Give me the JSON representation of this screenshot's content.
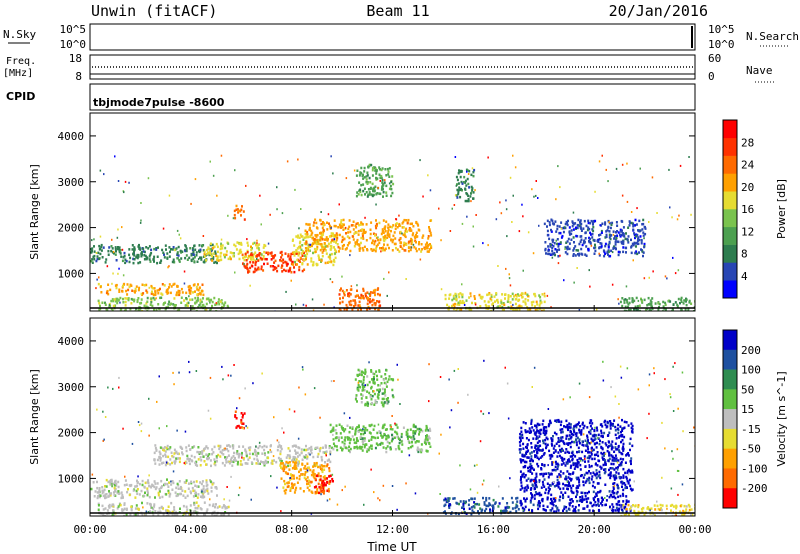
{
  "header": {
    "station": "Unwin (fitACF)",
    "beam": "Beam 11",
    "date": "20/Jan/2016"
  },
  "strip": {
    "nsky_label": "N.Sky",
    "nsky_top": "10^5",
    "nsky_bottom": "10^0",
    "nsky_right_top": "10^5",
    "nsky_right_bottom": "10^0",
    "nsearch_label": "N.Search",
    "freq_label_1": "Freq.",
    "freq_label_2": "[MHz]",
    "freq_top": "18",
    "freq_bottom": "8",
    "nave_top": "60",
    "nave_bottom": "0",
    "nave_label": "Nave",
    "cpid_label": "CPID",
    "cpid_value": "tbjmode7pulse  -8600"
  },
  "chart_data": [
    {
      "type": "heatmap",
      "name": "power",
      "ylabel": "Slant Range [km]",
      "xlabel": "Time UT",
      "ylim": [
        180,
        4500
      ],
      "xlim": [
        "00:00",
        "24:00"
      ],
      "yticks": [
        "1000",
        "2000",
        "3000",
        "4000"
      ],
      "xticks": [
        "00:00",
        "04:00",
        "08:00",
        "12:00",
        "16:00",
        "20:00",
        "00:00"
      ],
      "colorbar": {
        "label": "Power [dB]",
        "ticks": [
          "4",
          "8",
          "12",
          "16",
          "20",
          "24",
          "28"
        ],
        "colors": [
          "#0000ff",
          "#2846b4",
          "#2e7d4f",
          "#4ca050",
          "#7ac34e",
          "#e6dc32",
          "#ffa000",
          "#ff6a00",
          "#ff3200",
          "#ff0000"
        ]
      },
      "regions": [
        {
          "t0": 0.3,
          "t1": 5.5,
          "r0": 200,
          "r1": 500,
          "value": 14
        },
        {
          "t0": 0.3,
          "t1": 4.5,
          "r0": 550,
          "r1": 800,
          "value": 22
        },
        {
          "t0": 0.0,
          "t1": 5.0,
          "r0": 1250,
          "r1": 1650,
          "value": 9
        },
        {
          "t0": 4.5,
          "t1": 7.0,
          "r0": 1300,
          "r1": 1700,
          "value": 17
        },
        {
          "t0": 6.0,
          "t1": 8.5,
          "r0": 1050,
          "r1": 1500,
          "value": 27
        },
        {
          "t0": 8.0,
          "t1": 9.8,
          "r0": 1200,
          "r1": 1900,
          "value": 17
        },
        {
          "t0": 8.5,
          "t1": 13.5,
          "r0": 1500,
          "r1": 2200,
          "value": 21
        },
        {
          "t0": 9.8,
          "t1": 11.5,
          "r0": 200,
          "r1": 700,
          "value": 25
        },
        {
          "t0": 10.5,
          "t1": 12.0,
          "r0": 2700,
          "r1": 3400,
          "value": 11
        },
        {
          "t0": 5.7,
          "t1": 6.1,
          "r0": 2200,
          "r1": 2500,
          "value": 24
        },
        {
          "t0": 14.5,
          "t1": 15.2,
          "r0": 2600,
          "r1": 3300,
          "value": 7
        },
        {
          "t0": 14.0,
          "t1": 18.0,
          "r0": 200,
          "r1": 600,
          "value": 16
        },
        {
          "t0": 18.0,
          "t1": 22.0,
          "r0": 1400,
          "r1": 2200,
          "value": 6
        },
        {
          "t0": 21.0,
          "t1": 24.0,
          "r0": 200,
          "r1": 500,
          "value": 12
        }
      ]
    },
    {
      "type": "heatmap",
      "name": "velocity",
      "ylabel": "Slant Range [km]",
      "xlabel": "Time UT",
      "ylim": [
        180,
        4500
      ],
      "xlim": [
        "00:00",
        "24:00"
      ],
      "yticks": [
        "1000",
        "2000",
        "3000",
        "4000"
      ],
      "xticks": [
        "00:00",
        "04:00",
        "08:00",
        "12:00",
        "16:00",
        "20:00",
        "00:00"
      ],
      "colorbar": {
        "label": "Velocity [m s^-1]",
        "ticks": [
          "200",
          "100",
          "50",
          "15",
          "-15",
          "-50",
          "-100",
          "-200"
        ],
        "colors": [
          "#0000c8",
          "#1e50a0",
          "#2e8c50",
          "#60c040",
          "#bebebe",
          "#e6dc32",
          "#ffa000",
          "#ff6a00",
          "#ff0000"
        ]
      },
      "regions": [
        {
          "t0": 0.3,
          "t1": 5.5,
          "r0": 200,
          "r1": 500,
          "value": 0
        },
        {
          "t0": 0.0,
          "t1": 5.0,
          "r0": 600,
          "r1": 1000,
          "value": 5
        },
        {
          "t0": 2.5,
          "t1": 9.5,
          "r0": 1300,
          "r1": 1750,
          "value": -5
        },
        {
          "t0": 7.5,
          "t1": 9.5,
          "r0": 700,
          "r1": 1400,
          "value": -60
        },
        {
          "t0": 8.8,
          "t1": 9.6,
          "r0": 700,
          "r1": 1100,
          "value": -250
        },
        {
          "t0": 5.7,
          "t1": 6.1,
          "r0": 2100,
          "r1": 2500,
          "value": -250
        },
        {
          "t0": 9.5,
          "t1": 13.5,
          "r0": 1600,
          "r1": 2200,
          "value": 20
        },
        {
          "t0": 10.5,
          "t1": 12.0,
          "r0": 2600,
          "r1": 3400,
          "value": 30
        },
        {
          "t0": 17.0,
          "t1": 21.5,
          "r0": 300,
          "r1": 2300,
          "value": 180
        },
        {
          "t0": 14.0,
          "t1": 17.0,
          "r0": 250,
          "r1": 600,
          "value": 120
        },
        {
          "t0": 21.0,
          "t1": 24.0,
          "r0": 200,
          "r1": 450,
          "value": -20
        }
      ]
    }
  ]
}
